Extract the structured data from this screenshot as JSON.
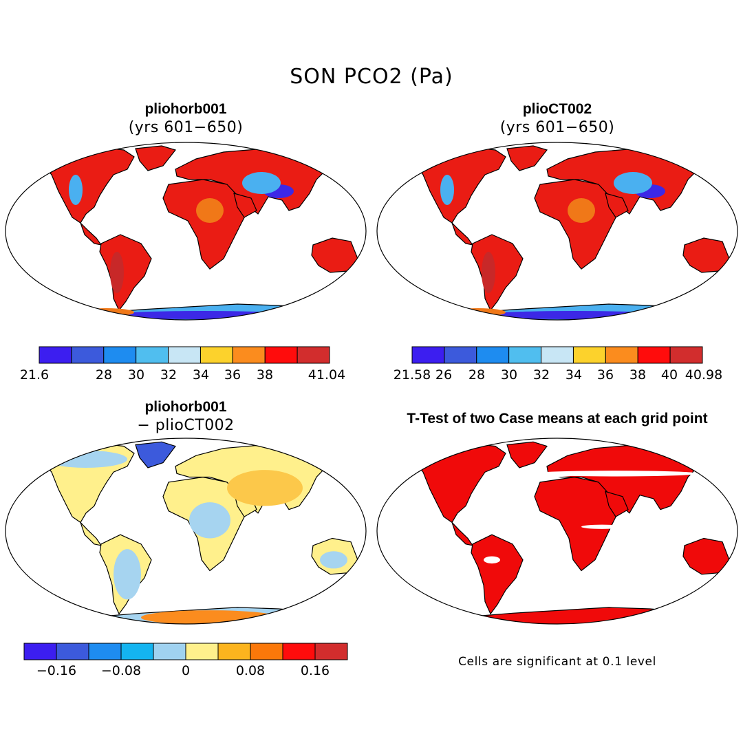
{
  "main_title": "SON PCO2 (Pa)",
  "panels": [
    {
      "title": "pliohorb001",
      "subtitle": "(yrs 601−650)",
      "kind": "field"
    },
    {
      "title": "plioCT002",
      "subtitle": "(yrs 601−650)",
      "kind": "field"
    },
    {
      "title": "pliohorb001",
      "subtitle": "− plioCT002",
      "kind": "difference"
    },
    {
      "title": "T-Test of two Case means at each grid point",
      "subtitle": "",
      "kind": "significance"
    }
  ],
  "colorbars": [
    {
      "colors": [
        "#3c1ef0",
        "#3c5adc",
        "#1e8cf0",
        "#50beef",
        "#c8e6f5",
        "#fcd22c",
        "#fb8c1e",
        "#ff0c0c",
        "#d22d2d"
      ],
      "labels": [
        "21.6",
        "28",
        "30",
        "32",
        "34",
        "36",
        "38",
        "41.04"
      ]
    },
    {
      "colors": [
        "#3c1ef0",
        "#3c5adc",
        "#1e8cf0",
        "#50beef",
        "#c8e6f5",
        "#fcd22c",
        "#fb8c1e",
        "#ff0c0c",
        "#d22d2d"
      ],
      "labels": [
        "21.58",
        "26",
        "28",
        "30",
        "32",
        "34",
        "36",
        "38",
        "40",
        "40.98"
      ]
    },
    {
      "colors": [
        "#3c1ef0",
        "#3c5adc",
        "#1e8cf0",
        "#14b4f0",
        "#a0d2f0",
        "#fff08c",
        "#fcb41e",
        "#fb780a",
        "#ff0c0c",
        "#d22d2d"
      ],
      "labels": [
        "−0.16",
        "−0.08",
        "0",
        "0.08",
        "0.16"
      ]
    }
  ],
  "map_colors": {
    "field": {
      "land": "#ea1c14",
      "alt": "#f07818",
      "cool": "#4ab0f0",
      "deep": "#3c28e6",
      "high": "#c82828"
    },
    "difference": {
      "land": "#fff08c",
      "alt": "#fcc84a",
      "cool": "#a6d4f0",
      "deep": "#3c5adc",
      "high": "#fb8c1e"
    },
    "significance": {
      "land": "#f00a0a",
      "alt": "#ffffff"
    }
  },
  "significance_note": "Cells are significant at 0.1 level"
}
